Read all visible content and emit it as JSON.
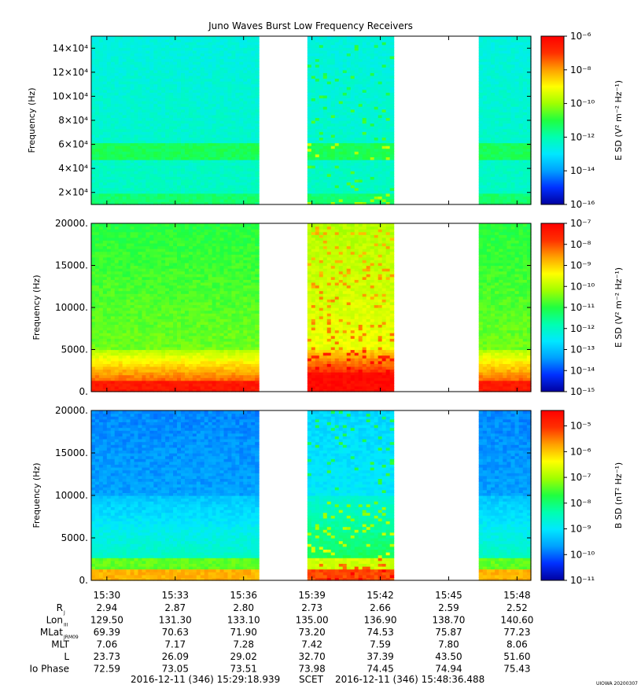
{
  "title": "Juno Waves Burst Low Frequency Receivers",
  "credit": "UIOWA 20200307",
  "footer": {
    "start": "2016-12-11 (346) 15:29:18.939",
    "label": "SCET",
    "end": "2016-12-11 (346) 15:48:36.488"
  },
  "colors": {
    "spectrum": [
      "#0000a0",
      "#0030ff",
      "#00a0ff",
      "#00e8ff",
      "#00ffb0",
      "#20ff40",
      "#a0ff00",
      "#ffff00",
      "#ffa000",
      "#ff3000",
      "#ff0000"
    ],
    "gap": "#ffffff"
  },
  "chart_data": [
    {
      "type": "heatmap",
      "ylabel": "Frequency (Hz)",
      "yticks": [
        "2×10⁴",
        "4×10⁴",
        "6×10⁴",
        "8×10⁴",
        "10×10⁴",
        "12×10⁴",
        "14×10⁴"
      ],
      "ytick_values": [
        20000,
        40000,
        60000,
        80000,
        100000,
        120000,
        140000
      ],
      "ylim": [
        10000,
        150000
      ],
      "colorbar_label": "E SD (V² m⁻² Hz⁻¹)",
      "colorbar_ticks": [
        "10⁻⁶",
        "10⁻⁸",
        "10⁻¹⁰",
        "10⁻¹²",
        "10⁻¹⁴",
        "10⁻¹⁶"
      ],
      "colorbar_log_range": [
        -16,
        -6
      ]
    },
    {
      "type": "heatmap",
      "ylabel": "Frequency (Hz)",
      "yticks": [
        "0.",
        "5000.",
        "10000.",
        "15000.",
        "20000."
      ],
      "ytick_values": [
        0,
        5000,
        10000,
        15000,
        20000
      ],
      "ylim": [
        0,
        20000
      ],
      "colorbar_label": "E SD (V² m⁻² Hz⁻¹)",
      "colorbar_ticks": [
        "10⁻⁷",
        "10⁻⁸",
        "10⁻⁹",
        "10⁻¹⁰",
        "10⁻¹¹",
        "10⁻¹²",
        "10⁻¹³",
        "10⁻¹⁴",
        "10⁻¹⁵"
      ],
      "colorbar_log_range": [
        -15,
        -7
      ]
    },
    {
      "type": "heatmap",
      "ylabel": "Frequency (Hz)",
      "yticks": [
        "0.",
        "5000.",
        "10000.",
        "15000.",
        "20000."
      ],
      "ytick_values": [
        0,
        5000,
        10000,
        15000,
        20000
      ],
      "ylim": [
        0,
        20000
      ],
      "colorbar_label": "B SD (nT² Hz⁻¹)",
      "colorbar_ticks": [
        "10⁻⁵",
        "10⁻⁶",
        "10⁻⁷",
        "10⁻⁸",
        "10⁻⁹",
        "10⁻¹⁰",
        "10⁻¹¹"
      ],
      "colorbar_log_range": [
        -11,
        -4.4
      ]
    }
  ],
  "xaxis": {
    "ticks": [
      "15:30",
      "15:33",
      "15:36",
      "15:39",
      "15:42",
      "15:45",
      "15:48"
    ],
    "tick_minutes": [
      30,
      33,
      36,
      39,
      42,
      45,
      48
    ],
    "xlim_minutes": [
      29.3147,
      48.6081
    ],
    "data_segments_minutes": [
      [
        29.3147,
        36.67
      ],
      [
        38.8,
        42.59
      ],
      [
        46.32,
        48.6081
      ]
    ]
  },
  "ephemeris": {
    "rows": [
      {
        "label": "R",
        "sub": "J",
        "values": [
          "2.94",
          "2.87",
          "2.80",
          "2.73",
          "2.66",
          "2.59",
          "2.52"
        ]
      },
      {
        "label": "Lon",
        "sub": "III",
        "values": [
          "129.50",
          "131.30",
          "133.10",
          "135.00",
          "136.90",
          "138.70",
          "140.60"
        ]
      },
      {
        "label": "MLat",
        "sub": "JRM09",
        "values": [
          "69.39",
          "70.63",
          "71.90",
          "73.20",
          "74.53",
          "75.87",
          "77.23"
        ]
      },
      {
        "label": "MLT",
        "sub": "",
        "values": [
          "7.06",
          "7.17",
          "7.28",
          "7.42",
          "7.59",
          "7.80",
          "8.06"
        ]
      },
      {
        "label": "L",
        "sub": "",
        "values": [
          "23.73",
          "26.09",
          "29.02",
          "32.70",
          "37.39",
          "43.50",
          "51.60"
        ]
      },
      {
        "label": "Io Phase",
        "sub": "",
        "values": [
          "72.59",
          "73.05",
          "73.51",
          "73.98",
          "74.45",
          "74.94",
          "75.43"
        ]
      }
    ]
  }
}
